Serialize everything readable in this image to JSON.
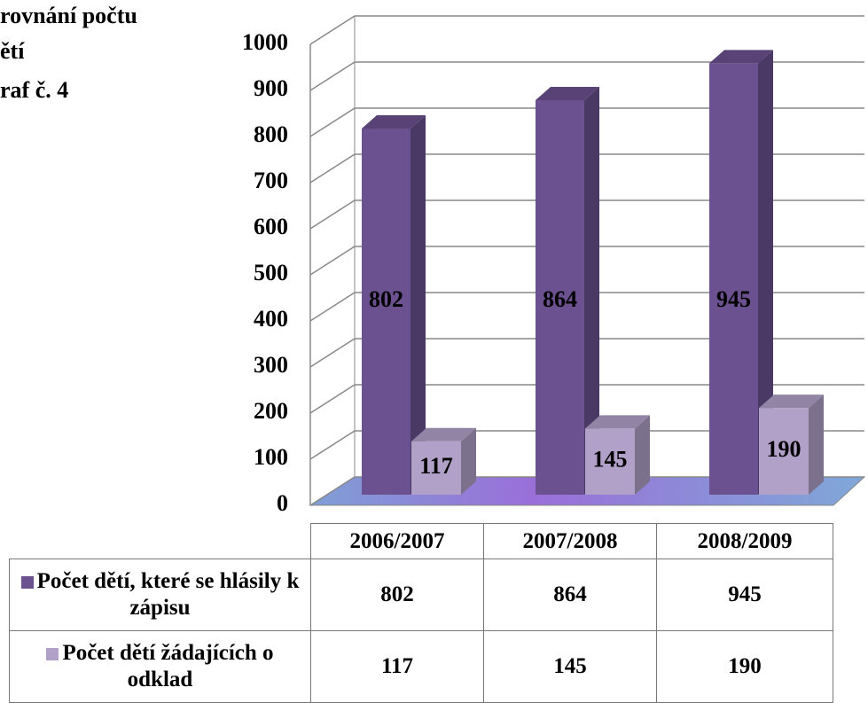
{
  "chart_data": {
    "type": "bar3d",
    "title_lines": [
      "rovnání počtu",
      "ětí",
      "raf č. 4"
    ],
    "categories": [
      "2006/2007",
      "2007/2008",
      "2008/2009"
    ],
    "series": [
      {
        "name": "Počet dětí, které se hlásily k zápisu",
        "color": "#6b5190",
        "values": [
          802,
          864,
          945
        ]
      },
      {
        "name": "Počet dětí žádajících o odklad",
        "color": "#b1a1c8",
        "values": [
          117,
          145,
          190
        ]
      }
    ],
    "ylim": [
      0,
      1000
    ],
    "yticks": [
      0,
      100,
      200,
      300,
      400,
      500,
      600,
      700,
      800,
      900,
      1000
    ],
    "grid": true
  }
}
